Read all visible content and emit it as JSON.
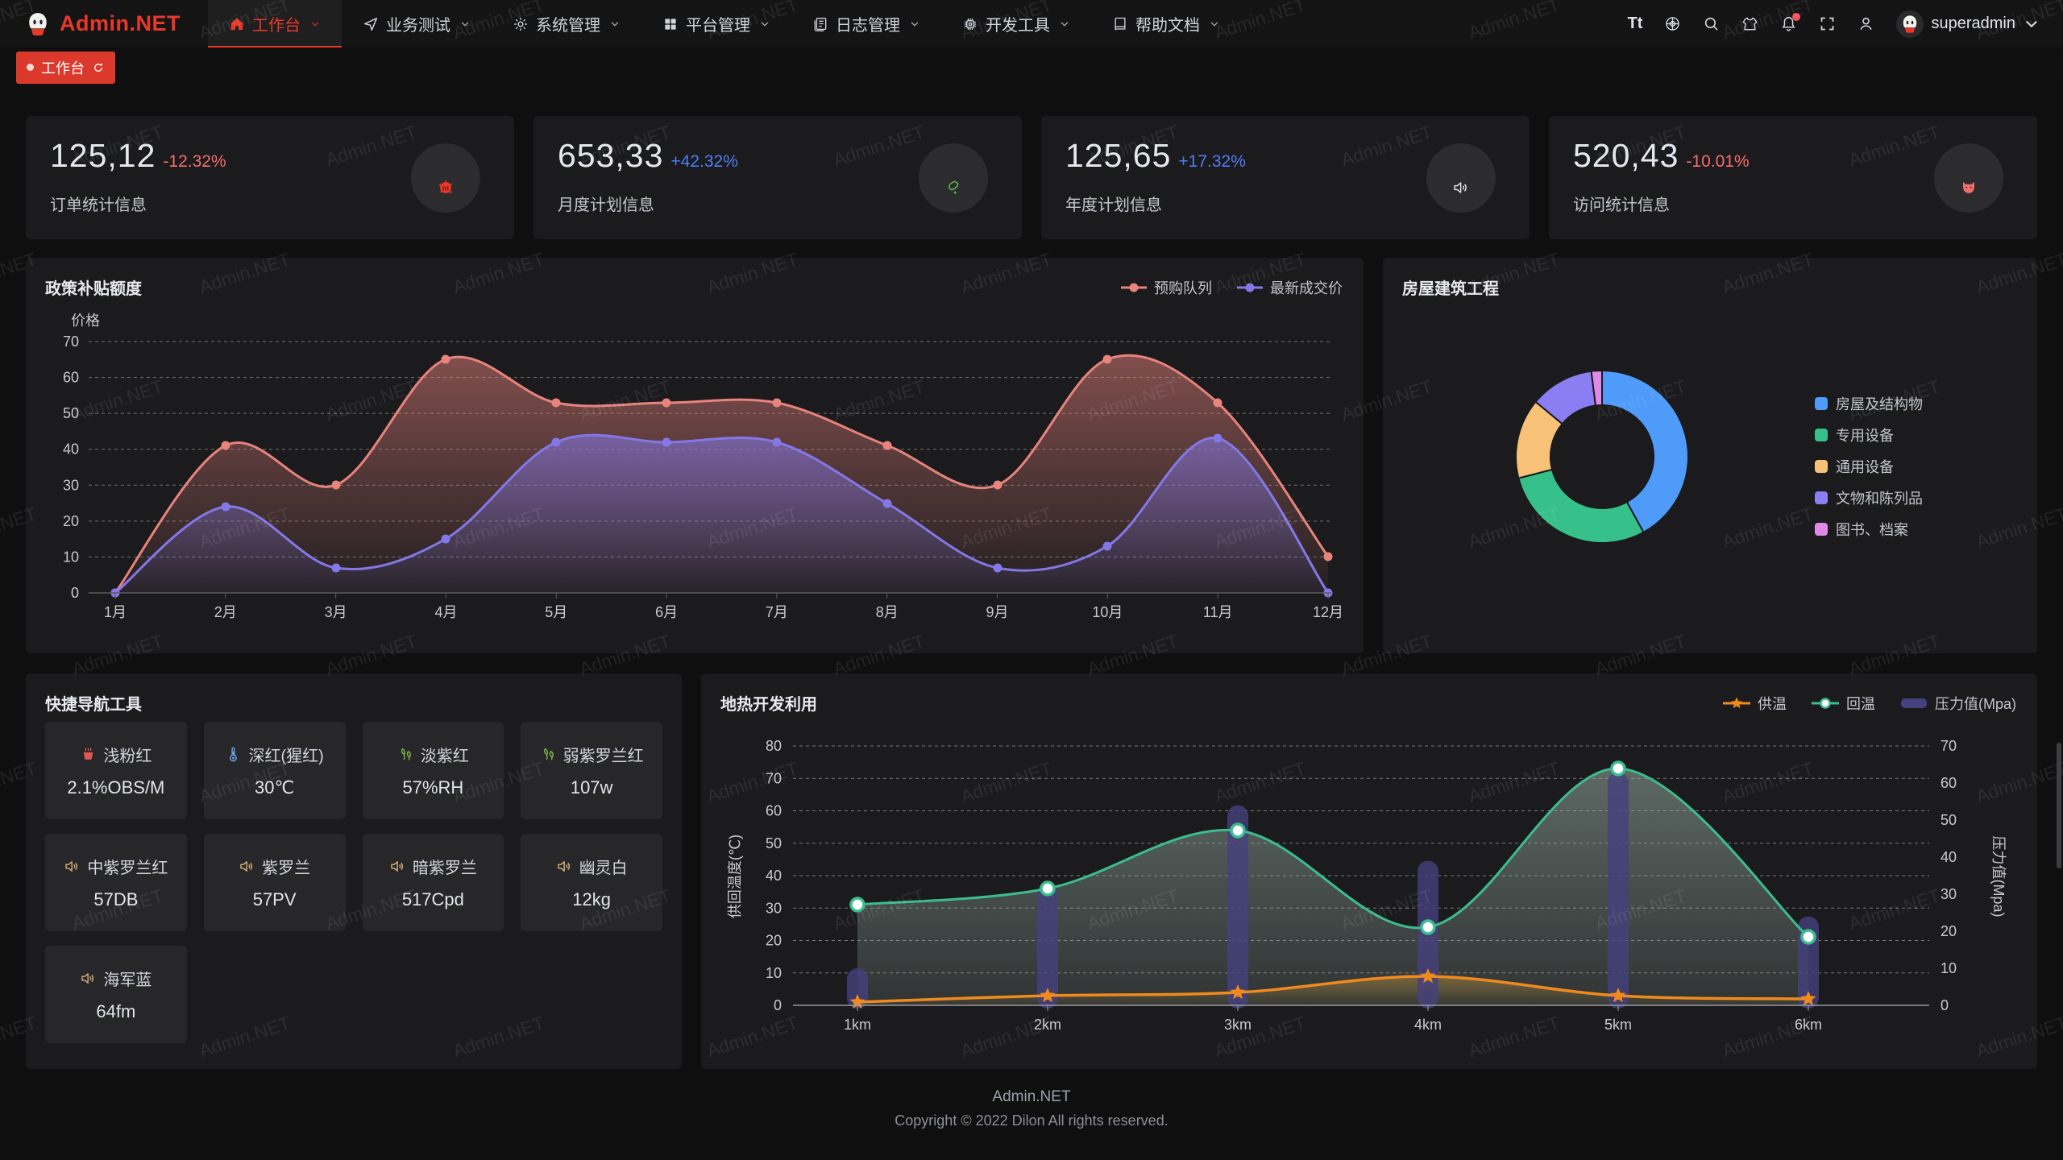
{
  "navbar": {
    "brand": "Admin.NET",
    "menu": [
      {
        "key": "workbench",
        "label": "工作台",
        "icon": "home-icon",
        "active": true
      },
      {
        "key": "business-test",
        "label": "业务测试",
        "icon": "send-icon",
        "active": false
      },
      {
        "key": "system-manage",
        "label": "系统管理",
        "icon": "gear-icon",
        "active": false
      },
      {
        "key": "platform-manage",
        "label": "平台管理",
        "icon": "grid-icon",
        "active": false
      },
      {
        "key": "log-manage",
        "label": "日志管理",
        "icon": "log-icon",
        "active": false
      },
      {
        "key": "dev-tools",
        "label": "开发工具",
        "icon": "chip-icon",
        "active": false
      },
      {
        "key": "help-docs",
        "label": "帮助文档",
        "icon": "book-icon",
        "active": false
      }
    ],
    "actions": [
      {
        "name": "font-size-icon",
        "glyph": "Tt"
      },
      {
        "name": "language-icon"
      },
      {
        "name": "search-icon"
      },
      {
        "name": "theme-icon"
      },
      {
        "name": "notification-icon",
        "badge": true
      },
      {
        "name": "fullscreen-icon"
      },
      {
        "name": "profile-icon"
      }
    ],
    "username": "superadmin"
  },
  "tabbar": {
    "tabs": [
      {
        "label": "工作台",
        "active": true
      }
    ]
  },
  "stat_cards": [
    {
      "value": "125,12",
      "delta": "-12.32%",
      "trend": "down",
      "label": "订单统计信息",
      "icon": "splat-icon"
    },
    {
      "value": "653,33",
      "delta": "+42.32%",
      "trend": "up",
      "label": "月度计划信息",
      "icon": "china-map-icon"
    },
    {
      "value": "125,65",
      "delta": "+17.32%",
      "trend": "up",
      "label": "年度计划信息",
      "icon": "speaker-icon"
    },
    {
      "value": "520,43",
      "delta": "-10.01%",
      "trend": "down",
      "label": "访问统计信息",
      "icon": "cat-icon"
    }
  ],
  "quick_nav": {
    "title": "快捷导航工具",
    "items": [
      {
        "name": "浅粉红",
        "value": "2.1%OBS/M",
        "icon": "brazier-icon",
        "icon_color": "#e25650"
      },
      {
        "name": "深红(猩红)",
        "value": "30℃",
        "icon": "thermometer-icon",
        "icon_color": "#6ea3e8"
      },
      {
        "name": "淡紫红",
        "value": "57%RH",
        "icon": "leaf-icon",
        "icon_color": "#7fbf4d"
      },
      {
        "name": "弱紫罗兰红",
        "value": "107w",
        "icon": "leaf-icon",
        "icon_color": "#7fbf4d"
      },
      {
        "name": "中紫罗兰红",
        "value": "57DB",
        "icon": "speaker-icon",
        "icon_color": "#d9b377"
      },
      {
        "name": "紫罗兰",
        "value": "57PV",
        "icon": "speaker-icon",
        "icon_color": "#d9b377"
      },
      {
        "name": "暗紫罗兰",
        "value": "517Cpd",
        "icon": "speaker-icon",
        "icon_color": "#d9b377"
      },
      {
        "name": "幽灵白",
        "value": "12kg",
        "icon": "speaker-icon",
        "icon_color": "#d9b377"
      },
      {
        "name": "海军蓝",
        "value": "64fm",
        "icon": "speaker-icon",
        "icon_color": "#d9b377"
      }
    ]
  },
  "chart_data": [
    {
      "id": "policy",
      "type": "area",
      "title": "政策补贴额度",
      "xlabel": "",
      "ylabel": "价格",
      "ylim": [
        0,
        70
      ],
      "grid": "dashed-horizontal",
      "legend_position": "top-right",
      "categories": [
        "1月",
        "2月",
        "3月",
        "4月",
        "5月",
        "6月",
        "7月",
        "8月",
        "9月",
        "10月",
        "11月",
        "12月"
      ],
      "series": [
        {
          "name": "预购队列",
          "color": "#E8837D",
          "values": [
            0,
            41,
            30,
            65,
            53,
            53,
            53,
            41,
            30,
            65,
            53,
            10
          ]
        },
        {
          "name": "最新成交价",
          "color": "#8478E8",
          "values": [
            0,
            24,
            7,
            15,
            42,
            42,
            42,
            25,
            7,
            13,
            43,
            0
          ]
        }
      ]
    },
    {
      "id": "house",
      "type": "pie",
      "title": "房屋建筑工程",
      "labels": [
        "房屋及结构物",
        "专用设备",
        "通用设备",
        "文物和陈列品",
        "图书、档案"
      ],
      "values": [
        42,
        29,
        15,
        12,
        2
      ],
      "unit": "percent",
      "colors": [
        "#4E9BFA",
        "#36C18A",
        "#F7C277",
        "#8B7EF2",
        "#E089E8"
      ],
      "inner_radius_ratio": 0.6,
      "legend_position": "right"
    },
    {
      "id": "geothermal",
      "type": "mixed",
      "title": "地热开发利用",
      "categories": [
        "1km",
        "2km",
        "3km",
        "4km",
        "5km",
        "6km"
      ],
      "left_axis": {
        "label": "供回温度(℃)",
        "lim": [
          0,
          80
        ]
      },
      "right_axis": {
        "label": "压力值(Mpa)",
        "lim": [
          0,
          70
        ]
      },
      "grid": "dashed-horizontal",
      "legend_position": "top-right",
      "series": [
        {
          "name": "供温",
          "type": "line",
          "marker": "star",
          "axis": "left",
          "color": "#F08A1D",
          "values": [
            1,
            3,
            4,
            9,
            3,
            2
          ]
        },
        {
          "name": "回温",
          "type": "line",
          "marker": "circle",
          "axis": "left",
          "color": "#3CBD8E",
          "values": [
            31,
            36,
            54,
            24,
            73,
            21
          ]
        },
        {
          "name": "压力值(Mpa)",
          "type": "bar",
          "axis": "right",
          "color": "#45407E",
          "values": [
            10,
            33,
            54,
            39,
            63,
            24
          ]
        }
      ]
    }
  ],
  "footer": {
    "brand": "Admin.NET",
    "copyright": "Copyright © 2022 Dilon All rights reserved."
  },
  "watermark": {
    "text": "Admin.NET"
  }
}
